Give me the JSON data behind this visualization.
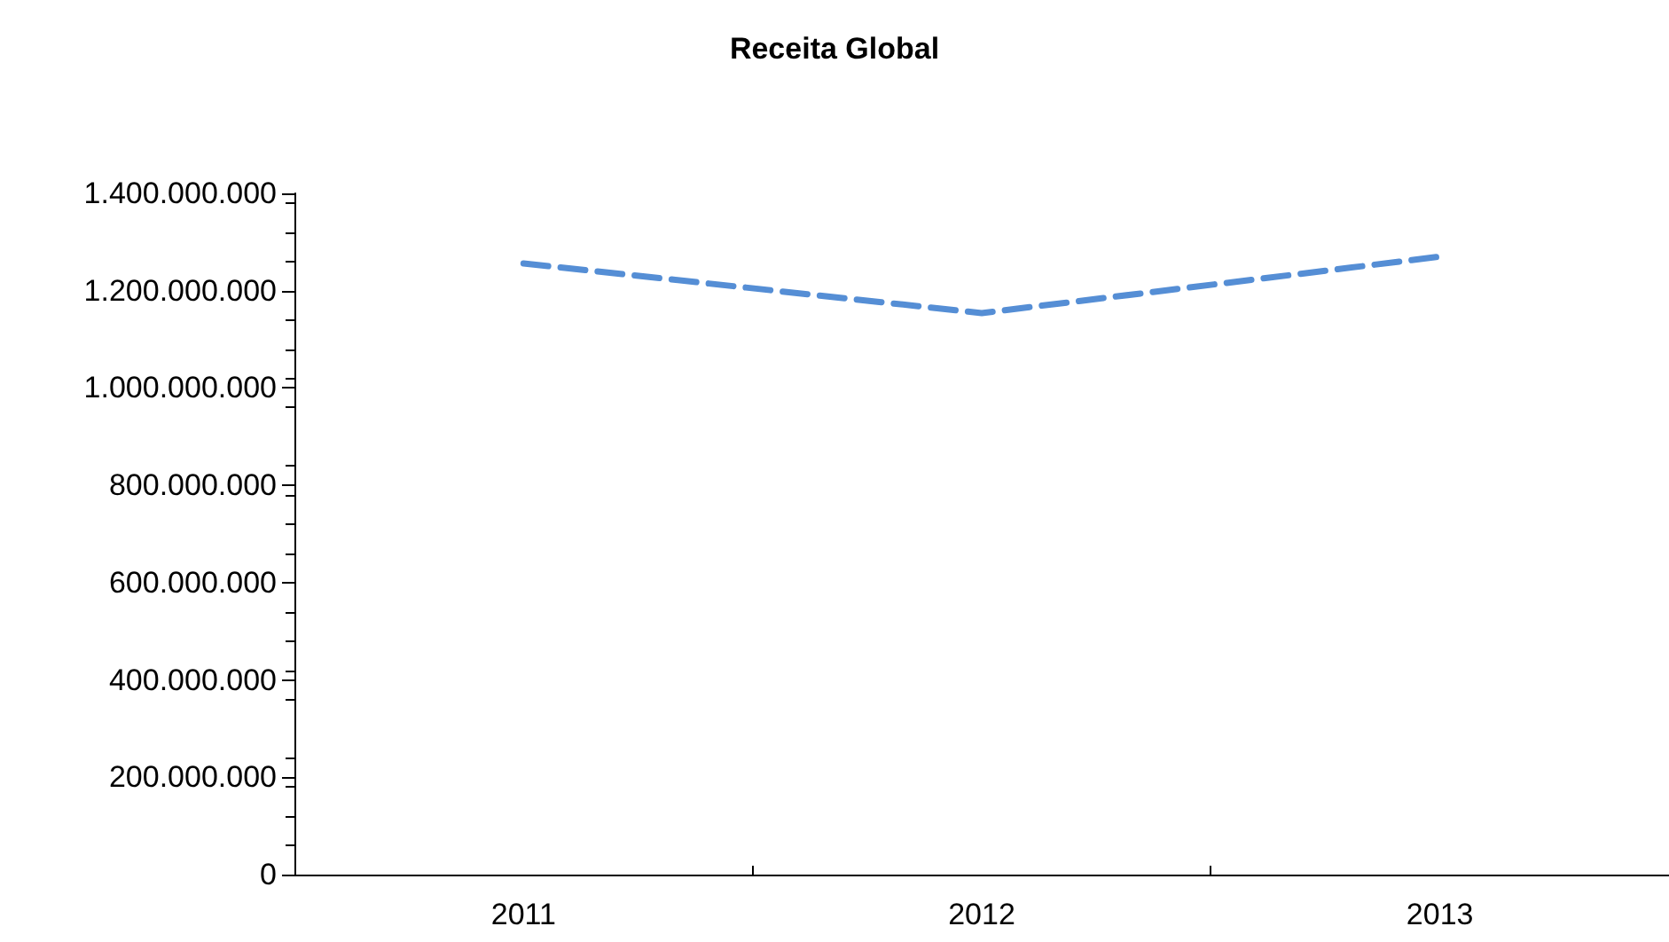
{
  "chart_data": {
    "type": "line",
    "title": "Receita Global",
    "categories": [
      "2011",
      "2012",
      "2013"
    ],
    "series": [
      {
        "color": "#558ed5",
        "values": [
          1256000000,
          1154000000,
          1270000000
        ]
      }
    ],
    "ylim": [
      0,
      1400000000
    ],
    "yticks": [
      {
        "value": 0,
        "label": "0"
      },
      {
        "value": 200000000,
        "label": "200.000.000"
      },
      {
        "value": 400000000,
        "label": "400.000.000"
      },
      {
        "value": 600000000,
        "label": "600.000.000"
      },
      {
        "value": 800000000,
        "label": "800.000.000"
      },
      {
        "value": 1000000000,
        "label": "1.000.000.000"
      },
      {
        "value": 1200000000,
        "label": "1.200.000.000"
      },
      {
        "value": 1400000000,
        "label": "1.400.000.000"
      }
    ],
    "grid": false,
    "marker": "none",
    "line_style": "dashed"
  }
}
